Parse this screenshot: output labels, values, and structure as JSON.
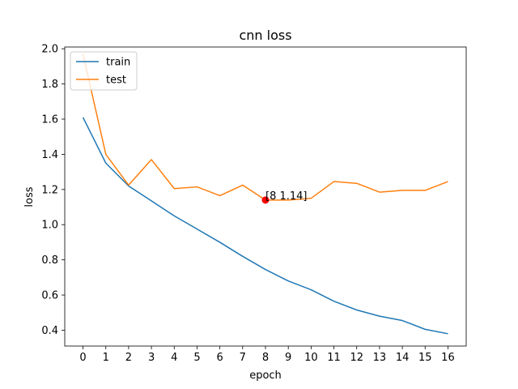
{
  "chart_data": {
    "type": "line",
    "title": "cnn loss",
    "xlabel": "epoch",
    "ylabel": "loss",
    "x": [
      0,
      1,
      2,
      3,
      4,
      5,
      6,
      7,
      8,
      9,
      10,
      11,
      12,
      13,
      14,
      15,
      16
    ],
    "xlim": [
      -0.8,
      16.8
    ],
    "ylim": [
      0.31,
      2.01
    ],
    "xticks": [
      0,
      1,
      2,
      3,
      4,
      5,
      6,
      7,
      8,
      9,
      10,
      11,
      12,
      13,
      14,
      15,
      16
    ],
    "yticks": [
      0.4,
      0.6,
      0.8,
      1.0,
      1.2,
      1.4,
      1.6,
      1.8,
      2.0
    ],
    "ytick_labels": [
      "0.4",
      "0.6",
      "0.8",
      "1.0",
      "1.2",
      "1.4",
      "1.6",
      "1.8",
      "2.0"
    ],
    "grid": false,
    "legend_position": "top-left",
    "series": [
      {
        "name": "train",
        "color": "#1f77b4",
        "values": [
          1.61,
          1.35,
          1.22,
          1.135,
          1.05,
          0.975,
          0.9,
          0.82,
          0.745,
          0.68,
          0.63,
          0.565,
          0.515,
          0.48,
          0.455,
          0.405,
          0.38
        ]
      },
      {
        "name": "test",
        "color": "#ff7f0e",
        "values": [
          1.97,
          1.4,
          1.225,
          1.37,
          1.205,
          1.215,
          1.165,
          1.225,
          1.14,
          1.14,
          1.15,
          1.245,
          1.235,
          1.185,
          1.195,
          1.195,
          1.245
        ]
      }
    ],
    "annotation": {
      "x": 8,
      "y": 1.14,
      "text": "[8 1.14]",
      "marker_color": "#ff0000"
    }
  }
}
